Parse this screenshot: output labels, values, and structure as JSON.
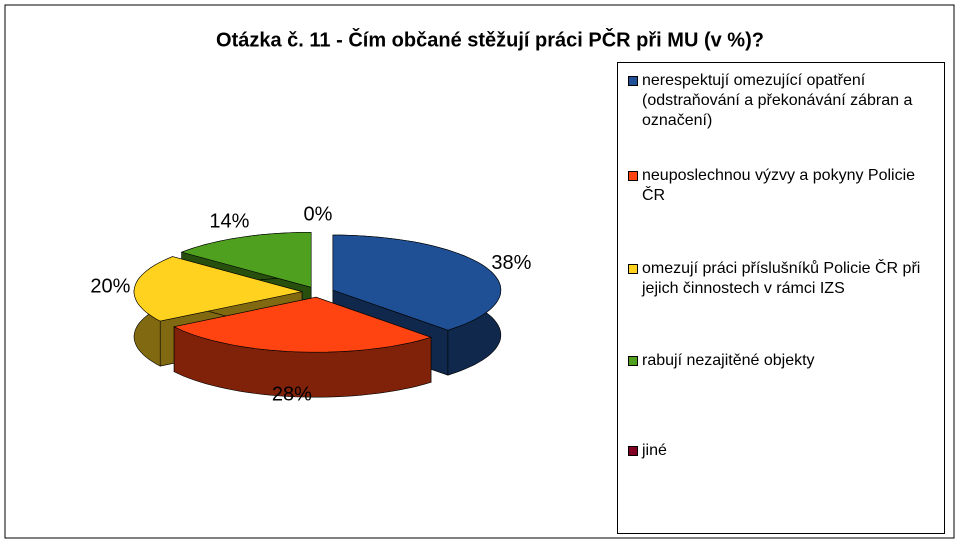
{
  "chart_data": {
    "type": "pie3d",
    "title": "Otázka č. 11 - Čím občané stěžují práci PČR při MU (v %)?",
    "categories": [
      "nerespektují omezující opatření (odstraňování a překonávání zábran a označení)",
      "neuposlechnou výzvy a pokyny Policie ČR",
      "omezují práci příslušníků Policie ČR při jejich činnostech v rámci IZS",
      "rabují nezajitěné objekty",
      "jiné"
    ],
    "values": [
      38,
      28,
      20,
      14,
      0
    ],
    "value_labels": [
      "38%",
      "28%",
      "20%",
      "14%",
      "0%"
    ],
    "colors": [
      "#1f5096",
      "#ff4411",
      "#ffd21f",
      "#4ea01e",
      "#7f0022"
    ],
    "legend": "right"
  }
}
